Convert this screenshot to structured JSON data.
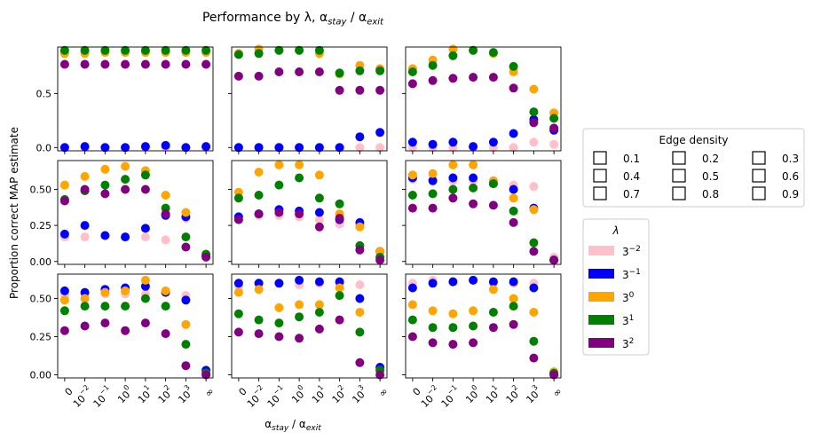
{
  "chart_data": {
    "type": "scatter",
    "title": "Performance by λ, α_stay / α_exit",
    "xlabel": "α_stay / α_exit",
    "ylabel": "Proportion correct MAP estimate",
    "x_tick_labels": [
      "0",
      "10^-2",
      "10^-1",
      "10^0",
      "10^1",
      "10^2",
      "10^3",
      "∞"
    ],
    "rows": [
      {
        "ylim": [
          -0.03,
          0.93
        ],
        "yticks": [
          0.0,
          0.5
        ],
        "ytick_labels": [
          "0.0",
          "0.5"
        ]
      },
      {
        "ylim": [
          -0.02,
          0.7
        ],
        "yticks": [
          0.0,
          0.25,
          0.5
        ],
        "ytick_labels": [
          "0.00",
          "0.25",
          "0.50"
        ]
      },
      {
        "ylim": [
          -0.02,
          0.66
        ],
        "yticks": [
          0.0,
          0.25,
          0.5
        ],
        "ytick_labels": [
          "0.00",
          "0.25",
          "0.50"
        ]
      }
    ],
    "series_colors": {
      "3^-2": "#ffc0cb",
      "3^-1": "#0000ff",
      "3^0": "#ffa500",
      "3^1": "#008000",
      "3^2": "#800080"
    },
    "panels": [
      {
        "row": 0,
        "col": 0,
        "series": [
          {
            "name": "3^-2",
            "values": [
              0.0,
              0.0,
              0.0,
              0.0,
              0.0,
              0.0,
              0.0,
              0.0
            ]
          },
          {
            "name": "3^-1",
            "values": [
              0.0,
              0.01,
              0.0,
              0.0,
              0.01,
              0.02,
              0.0,
              0.01
            ]
          },
          {
            "name": "3^0",
            "values": [
              0.87,
              0.87,
              0.88,
              0.88,
              0.88,
              0.88,
              0.88,
              0.88
            ]
          },
          {
            "name": "3^1",
            "values": [
              0.9,
              0.9,
              0.9,
              0.9,
              0.9,
              0.9,
              0.9,
              0.9
            ]
          },
          {
            "name": "3^2",
            "values": [
              0.77,
              0.77,
              0.77,
              0.77,
              0.77,
              0.77,
              0.77,
              0.77
            ]
          }
        ]
      },
      {
        "row": 0,
        "col": 1,
        "series": [
          {
            "name": "3^-2",
            "values": [
              0.0,
              0.0,
              0.0,
              0.0,
              0.0,
              0.0,
              0.0,
              0.0
            ]
          },
          {
            "name": "3^-1",
            "values": [
              0.0,
              0.0,
              0.0,
              0.0,
              0.0,
              0.0,
              0.1,
              0.14
            ]
          },
          {
            "name": "3^0",
            "values": [
              0.87,
              0.91,
              0.9,
              0.9,
              0.87,
              0.68,
              0.76,
              0.73
            ]
          },
          {
            "name": "3^1",
            "values": [
              0.86,
              0.87,
              0.9,
              0.9,
              0.9,
              0.69,
              0.71,
              0.71
            ]
          },
          {
            "name": "3^2",
            "values": [
              0.66,
              0.66,
              0.7,
              0.7,
              0.7,
              0.53,
              0.53,
              0.53
            ]
          }
        ]
      },
      {
        "row": 0,
        "col": 2,
        "series": [
          {
            "name": "3^-2",
            "values": [
              0.0,
              0.0,
              0.0,
              0.0,
              0.0,
              0.0,
              0.05,
              0.03
            ]
          },
          {
            "name": "3^-1",
            "values": [
              0.05,
              0.03,
              0.05,
              0.01,
              0.05,
              0.13,
              0.26,
              0.16
            ]
          },
          {
            "name": "3^0",
            "values": [
              0.73,
              0.81,
              0.91,
              0.9,
              0.87,
              0.7,
              0.54,
              0.32
            ]
          },
          {
            "name": "3^1",
            "values": [
              0.7,
              0.76,
              0.85,
              0.9,
              0.88,
              0.75,
              0.33,
              0.27
            ]
          },
          {
            "name": "3^2",
            "values": [
              0.59,
              0.62,
              0.64,
              0.65,
              0.65,
              0.55,
              0.23,
              0.18
            ]
          }
        ]
      },
      {
        "row": 1,
        "col": 0,
        "series": [
          {
            "name": "3^-2",
            "values": [
              0.17,
              0.17,
              0.18,
              0.17,
              0.17,
              0.15,
              0.3,
              0.05
            ]
          },
          {
            "name": "3^-1",
            "values": [
              0.19,
              0.25,
              0.18,
              0.17,
              0.23,
              0.32,
              0.31,
              0.04
            ]
          },
          {
            "name": "3^0",
            "values": [
              0.53,
              0.59,
              0.64,
              0.66,
              0.63,
              0.46,
              0.34,
              0.05
            ]
          },
          {
            "name": "3^1",
            "values": [
              0.43,
              0.49,
              0.53,
              0.57,
              0.6,
              0.37,
              0.17,
              0.05
            ]
          },
          {
            "name": "3^2",
            "values": [
              0.42,
              0.5,
              0.47,
              0.5,
              0.5,
              0.33,
              0.1,
              0.03
            ]
          }
        ]
      },
      {
        "row": 1,
        "col": 1,
        "series": [
          {
            "name": "3^-2",
            "values": [
              0.29,
              0.32,
              0.32,
              0.31,
              0.29,
              0.26,
              0.25,
              0.07
            ]
          },
          {
            "name": "3^-1",
            "values": [
              0.31,
              0.33,
              0.36,
              0.35,
              0.34,
              0.29,
              0.27,
              0.07
            ]
          },
          {
            "name": "3^0",
            "values": [
              0.48,
              0.62,
              0.67,
              0.67,
              0.6,
              0.33,
              0.24,
              0.07
            ]
          },
          {
            "name": "3^1",
            "values": [
              0.44,
              0.46,
              0.53,
              0.58,
              0.44,
              0.4,
              0.11,
              0.03
            ]
          },
          {
            "name": "3^2",
            "values": [
              0.29,
              0.33,
              0.34,
              0.33,
              0.24,
              0.3,
              0.08,
              0.01
            ]
          }
        ]
      },
      {
        "row": 1,
        "col": 2,
        "series": [
          {
            "name": "3^-2",
            "values": [
              0.57,
              0.57,
              0.56,
              0.56,
              0.56,
              0.53,
              0.52,
              0.03
            ]
          },
          {
            "name": "3^-1",
            "values": [
              0.58,
              0.56,
              0.58,
              0.58,
              0.54,
              0.5,
              0.37,
              0.01
            ]
          },
          {
            "name": "3^0",
            "values": [
              0.6,
              0.61,
              0.67,
              0.67,
              0.56,
              0.44,
              0.36,
              0.01
            ]
          },
          {
            "name": "3^1",
            "values": [
              0.46,
              0.47,
              0.5,
              0.51,
              0.54,
              0.35,
              0.13,
              0.01
            ]
          },
          {
            "name": "3^2",
            "values": [
              0.37,
              0.37,
              0.44,
              0.4,
              0.39,
              0.27,
              0.07,
              0.01
            ]
          }
        ]
      },
      {
        "row": 2,
        "col": 0,
        "series": [
          {
            "name": "3^-2",
            "values": [
              0.52,
              0.53,
              0.53,
              0.53,
              0.53,
              0.54,
              0.52,
              0.02
            ]
          },
          {
            "name": "3^-1",
            "values": [
              0.55,
              0.54,
              0.56,
              0.57,
              0.58,
              0.54,
              0.49,
              0.03
            ]
          },
          {
            "name": "3^0",
            "values": [
              0.49,
              0.5,
              0.54,
              0.55,
              0.62,
              0.55,
              0.33,
              0.01
            ]
          },
          {
            "name": "3^1",
            "values": [
              0.42,
              0.45,
              0.45,
              0.45,
              0.5,
              0.45,
              0.2,
              0.01
            ]
          },
          {
            "name": "3^2",
            "values": [
              0.29,
              0.32,
              0.34,
              0.29,
              0.34,
              0.27,
              0.06,
              0.0
            ]
          }
        ]
      },
      {
        "row": 2,
        "col": 1,
        "series": [
          {
            "name": "3^-2",
            "values": [
              0.58,
              0.6,
              0.6,
              0.59,
              0.6,
              0.6,
              0.59,
              0.04
            ]
          },
          {
            "name": "3^-1",
            "values": [
              0.6,
              0.6,
              0.6,
              0.62,
              0.61,
              0.61,
              0.5,
              0.05
            ]
          },
          {
            "name": "3^0",
            "values": [
              0.54,
              0.56,
              0.44,
              0.46,
              0.46,
              0.57,
              0.41,
              0.03
            ]
          },
          {
            "name": "3^1",
            "values": [
              0.4,
              0.36,
              0.34,
              0.38,
              0.41,
              0.52,
              0.28,
              0.03
            ]
          },
          {
            "name": "3^2",
            "values": [
              0.28,
              0.27,
              0.25,
              0.24,
              0.3,
              0.36,
              0.08,
              0.0
            ]
          }
        ]
      },
      {
        "row": 2,
        "col": 2,
        "series": [
          {
            "name": "3^-2",
            "values": [
              0.6,
              0.62,
              0.61,
              0.62,
              0.6,
              0.6,
              0.6,
              0.02
            ]
          },
          {
            "name": "3^-1",
            "values": [
              0.57,
              0.6,
              0.61,
              0.62,
              0.61,
              0.61,
              0.57,
              0.01
            ]
          },
          {
            "name": "3^0",
            "values": [
              0.46,
              0.42,
              0.4,
              0.42,
              0.56,
              0.5,
              0.41,
              0.02
            ]
          },
          {
            "name": "3^1",
            "values": [
              0.36,
              0.31,
              0.31,
              0.32,
              0.41,
              0.45,
              0.22,
              0.01
            ]
          },
          {
            "name": "3^2",
            "values": [
              0.25,
              0.21,
              0.2,
              0.21,
              0.31,
              0.33,
              0.11,
              0.0
            ]
          }
        ]
      }
    ],
    "legends": {
      "edge_density": {
        "title": "Edge density",
        "entries": [
          "0.1",
          "0.2",
          "0.3",
          "0.4",
          "0.5",
          "0.6",
          "0.7",
          "0.8",
          "0.9"
        ]
      },
      "lambda": {
        "title": "λ",
        "entries": [
          "3^-2",
          "3^-1",
          "3^0",
          "3^1",
          "3^2"
        ]
      }
    }
  }
}
